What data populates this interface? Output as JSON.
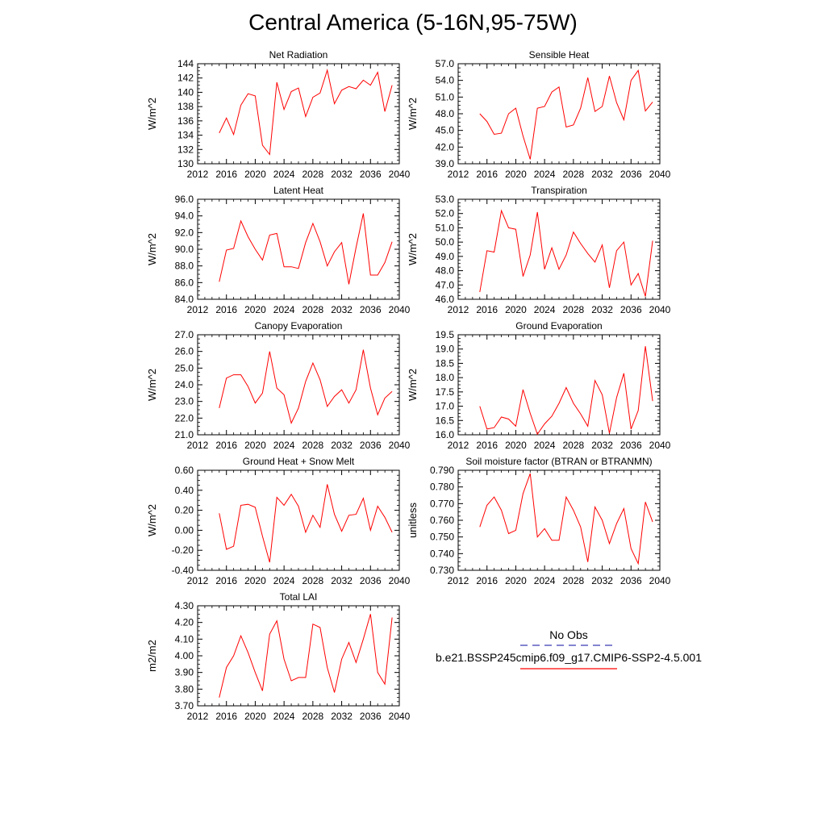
{
  "page": {
    "title": "Central America (5-16N,95-75W)"
  },
  "legend": {
    "obs_label": "No Obs",
    "obs_color": "#3b3bb3",
    "model_label": "b.e21.BSSP245cmip6.f09_g17.CMIP6-SSP2-4.5.001",
    "model_color": "#ff0000"
  },
  "chart_data": [
    {
      "type": "line",
      "title": "Net Radiation",
      "ylabel": "W/m^2",
      "xlim": [
        2012,
        2040
      ],
      "ylim": [
        130,
        144
      ],
      "xticks": [
        "2012",
        "2016",
        "2020",
        "2024",
        "2028",
        "2032",
        "2036",
        "2040"
      ],
      "yticks": [
        "130",
        "132",
        "134",
        "136",
        "138",
        "140",
        "142",
        "144"
      ],
      "series": [
        {
          "color": "#ff0000",
          "x": [
            2015,
            2016,
            2017,
            2018,
            2019,
            2020,
            2021,
            2022,
            2023,
            2024,
            2025,
            2026,
            2027,
            2028,
            2029,
            2030,
            2031,
            2032,
            2033,
            2034,
            2035,
            2036,
            2037,
            2038,
            2039
          ],
          "y": [
            134.3,
            136.4,
            134.1,
            138.2,
            139.8,
            139.5,
            132.6,
            131.3,
            141.4,
            137.6,
            140.1,
            140.6,
            136.6,
            139.3,
            139.9,
            143.1,
            138.4,
            140.3,
            140.8,
            140.5,
            141.7,
            141.0,
            142.8,
            137.3,
            141.0
          ]
        }
      ]
    },
    {
      "type": "line",
      "title": "Sensible Heat",
      "ylabel": "W/m^2",
      "xlim": [
        2012,
        2040
      ],
      "ylim": [
        39,
        57
      ],
      "xticks": [
        "2012",
        "2016",
        "2020",
        "2024",
        "2028",
        "2032",
        "2036",
        "2040"
      ],
      "yticks": [
        "39.0",
        "42.0",
        "45.0",
        "48.0",
        "51.0",
        "54.0",
        "57.0"
      ],
      "series": [
        {
          "color": "#ff0000",
          "x": [
            2015,
            2016,
            2017,
            2018,
            2019,
            2020,
            2021,
            2022,
            2023,
            2024,
            2025,
            2026,
            2027,
            2028,
            2029,
            2030,
            2031,
            2032,
            2033,
            2034,
            2035,
            2036,
            2037,
            2038,
            2039
          ],
          "y": [
            48.0,
            46.6,
            44.3,
            44.5,
            48.0,
            49.0,
            44.0,
            39.8,
            49.0,
            49.3,
            51.9,
            52.8,
            45.6,
            46.0,
            49.0,
            54.5,
            48.4,
            49.3,
            54.8,
            50.0,
            46.9,
            54.0,
            55.8,
            48.5,
            50.1
          ]
        }
      ]
    },
    {
      "type": "line",
      "title": "Latent Heat",
      "ylabel": "W/m^2",
      "xlim": [
        2012,
        2040
      ],
      "ylim": [
        84,
        96
      ],
      "xticks": [
        "2012",
        "2016",
        "2020",
        "2024",
        "2028",
        "2032",
        "2036",
        "2040"
      ],
      "yticks": [
        "84.0",
        "86.0",
        "88.0",
        "90.0",
        "92.0",
        "94.0",
        "96.0"
      ],
      "series": [
        {
          "color": "#ff0000",
          "x": [
            2015,
            2016,
            2017,
            2018,
            2019,
            2020,
            2021,
            2022,
            2023,
            2024,
            2025,
            2026,
            2027,
            2028,
            2029,
            2030,
            2031,
            2032,
            2033,
            2034,
            2035,
            2036,
            2037,
            2038,
            2039
          ],
          "y": [
            86.1,
            89.9,
            90.1,
            93.4,
            91.5,
            90.0,
            88.7,
            91.7,
            91.9,
            87.9,
            87.9,
            87.7,
            90.8,
            93.1,
            90.9,
            88.0,
            89.7,
            90.8,
            85.8,
            90.2,
            94.3,
            86.9,
            86.9,
            88.4,
            90.9
          ]
        }
      ]
    },
    {
      "type": "line",
      "title": "Transpiration",
      "ylabel": "W/m^2",
      "xlim": [
        2012,
        2040
      ],
      "ylim": [
        46,
        53
      ],
      "xticks": [
        "2012",
        "2016",
        "2020",
        "2024",
        "2028",
        "2032",
        "2036",
        "2040"
      ],
      "yticks": [
        "46.0",
        "47.0",
        "48.0",
        "49.0",
        "50.0",
        "51.0",
        "52.0",
        "53.0"
      ],
      "series": [
        {
          "color": "#ff0000",
          "x": [
            2015,
            2016,
            2017,
            2018,
            2019,
            2020,
            2021,
            2022,
            2023,
            2024,
            2025,
            2026,
            2027,
            2028,
            2029,
            2030,
            2031,
            2032,
            2033,
            2034,
            2035,
            2036,
            2037,
            2038,
            2039
          ],
          "y": [
            46.5,
            49.4,
            49.3,
            52.2,
            51.0,
            50.9,
            47.6,
            49.1,
            52.1,
            48.1,
            49.6,
            48.1,
            49.1,
            50.7,
            49.9,
            49.2,
            48.6,
            49.8,
            46.8,
            49.4,
            50.0,
            47.0,
            47.8,
            46.2,
            50.1
          ]
        }
      ]
    },
    {
      "type": "line",
      "title": "Canopy Evaporation",
      "ylabel": "W/m^2",
      "xlim": [
        2012,
        2040
      ],
      "ylim": [
        21,
        27
      ],
      "xticks": [
        "2012",
        "2016",
        "2020",
        "2024",
        "2028",
        "2032",
        "2036",
        "2040"
      ],
      "yticks": [
        "21.0",
        "22.0",
        "23.0",
        "24.0",
        "25.0",
        "26.0",
        "27.0"
      ],
      "series": [
        {
          "color": "#ff0000",
          "x": [
            2015,
            2016,
            2017,
            2018,
            2019,
            2020,
            2021,
            2022,
            2023,
            2024,
            2025,
            2026,
            2027,
            2028,
            2029,
            2030,
            2031,
            2032,
            2033,
            2034,
            2035,
            2036,
            2037,
            2038,
            2039
          ],
          "y": [
            22.6,
            24.4,
            24.6,
            24.6,
            23.9,
            22.9,
            23.5,
            26.0,
            23.8,
            23.4,
            21.7,
            22.6,
            24.2,
            25.3,
            24.3,
            22.7,
            23.3,
            23.7,
            22.9,
            23.7,
            26.1,
            23.8,
            22.2,
            23.2,
            23.6
          ]
        }
      ]
    },
    {
      "type": "line",
      "title": "Ground Evaporation",
      "ylabel": "W/m^2",
      "xlim": [
        2012,
        2040
      ],
      "ylim": [
        16,
        19.5
      ],
      "xticks": [
        "2012",
        "2016",
        "2020",
        "2024",
        "2028",
        "2032",
        "2036",
        "2040"
      ],
      "yticks": [
        "16.0",
        "16.5",
        "17.0",
        "17.5",
        "18.0",
        "18.5",
        "19.0",
        "19.5"
      ],
      "series": [
        {
          "color": "#ff0000",
          "x": [
            2015,
            2016,
            2017,
            2018,
            2019,
            2020,
            2021,
            2022,
            2023,
            2024,
            2025,
            2026,
            2027,
            2028,
            2029,
            2030,
            2031,
            2032,
            2033,
            2034,
            2035,
            2036,
            2037,
            2038,
            2039
          ],
          "y": [
            17.0,
            16.2,
            16.25,
            16.62,
            16.55,
            16.3,
            17.58,
            16.75,
            16.02,
            16.38,
            16.65,
            17.1,
            17.65,
            17.1,
            16.73,
            16.3,
            17.9,
            17.4,
            16.05,
            17.3,
            18.15,
            16.2,
            16.85,
            19.1,
            17.18
          ]
        }
      ]
    },
    {
      "type": "line",
      "title": "Ground Heat + Snow Melt",
      "ylabel": "W/m^2",
      "xlim": [
        2012,
        2040
      ],
      "ylim": [
        -0.4,
        0.6
      ],
      "xticks": [
        "2012",
        "2016",
        "2020",
        "2024",
        "2028",
        "2032",
        "2036",
        "2040"
      ],
      "yticks": [
        "-0.40",
        "-0.20",
        "0.00",
        "0.20",
        "0.40",
        "0.60"
      ],
      "series": [
        {
          "color": "#ff0000",
          "x": [
            2015,
            2016,
            2017,
            2018,
            2019,
            2020,
            2021,
            2022,
            2023,
            2024,
            2025,
            2026,
            2027,
            2028,
            2029,
            2030,
            2031,
            2032,
            2033,
            2034,
            2035,
            2036,
            2037,
            2038,
            2039
          ],
          "y": [
            0.17,
            -0.19,
            -0.16,
            0.25,
            0.26,
            0.23,
            -0.06,
            -0.32,
            0.33,
            0.25,
            0.36,
            0.24,
            -0.02,
            0.15,
            0.03,
            0.46,
            0.16,
            -0.01,
            0.15,
            0.16,
            0.32,
            0.0,
            0.24,
            0.13,
            -0.02
          ]
        }
      ]
    },
    {
      "type": "line",
      "title": "Soil moisture factor (BTRAN or BTRANMN)",
      "ylabel": "unitless",
      "xlim": [
        2012,
        2040
      ],
      "ylim": [
        0.73,
        0.79
      ],
      "xticks": [
        "2012",
        "2016",
        "2020",
        "2024",
        "2028",
        "2032",
        "2036",
        "2040"
      ],
      "yticks": [
        "0.730",
        "0.740",
        "0.750",
        "0.760",
        "0.770",
        "0.780",
        "0.790"
      ],
      "series": [
        {
          "color": "#ff0000",
          "x": [
            2015,
            2016,
            2017,
            2018,
            2019,
            2020,
            2021,
            2022,
            2023,
            2024,
            2025,
            2026,
            2027,
            2028,
            2029,
            2030,
            2031,
            2032,
            2033,
            2034,
            2035,
            2036,
            2037,
            2038,
            2039
          ],
          "y": [
            0.756,
            0.769,
            0.774,
            0.766,
            0.752,
            0.754,
            0.776,
            0.788,
            0.75,
            0.755,
            0.748,
            0.748,
            0.774,
            0.766,
            0.756,
            0.735,
            0.768,
            0.76,
            0.746,
            0.758,
            0.767,
            0.743,
            0.734,
            0.771,
            0.759
          ]
        }
      ]
    },
    {
      "type": "line",
      "title": "Total LAI",
      "ylabel": "m2/m2",
      "xlim": [
        2012,
        2040
      ],
      "ylim": [
        3.7,
        4.3
      ],
      "xticks": [
        "2012",
        "2016",
        "2020",
        "2024",
        "2028",
        "2032",
        "2036",
        "2040"
      ],
      "yticks": [
        "3.70",
        "3.80",
        "3.90",
        "4.00",
        "4.10",
        "4.20",
        "4.30"
      ],
      "series": [
        {
          "color": "#ff0000",
          "x": [
            2015,
            2016,
            2017,
            2018,
            2019,
            2020,
            2021,
            2022,
            2023,
            2024,
            2025,
            2026,
            2027,
            2028,
            2029,
            2030,
            2031,
            2032,
            2033,
            2034,
            2035,
            2036,
            2037,
            2038,
            2039
          ],
          "y": [
            3.75,
            3.93,
            4.0,
            4.12,
            4.02,
            3.9,
            3.79,
            4.13,
            4.21,
            3.98,
            3.85,
            3.87,
            3.87,
            4.19,
            4.17,
            3.93,
            3.78,
            3.98,
            4.08,
            3.96,
            4.1,
            4.25,
            3.9,
            3.83,
            4.23
          ]
        }
      ]
    }
  ]
}
